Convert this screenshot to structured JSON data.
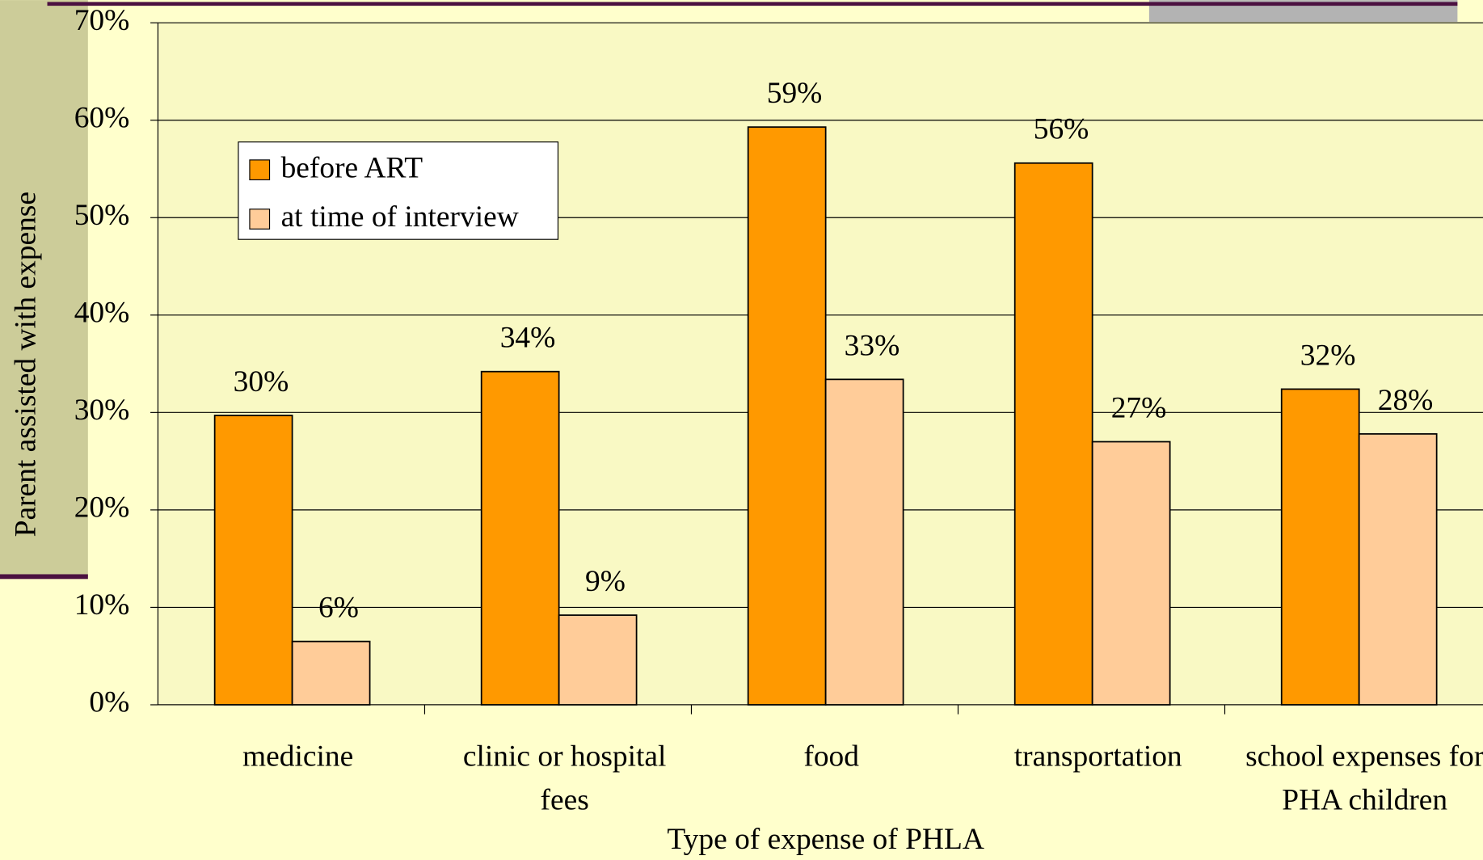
{
  "chart_data": {
    "type": "bar",
    "x_label": "Type of expense of PHLA",
    "y_label": "Parent assisted with expense",
    "categories": [
      "medicine",
      "clinic or hospital fees",
      "food",
      "transportation",
      "school expenses for PHA children"
    ],
    "series": [
      {
        "name": "before ART",
        "color": "#ff9900",
        "values": [
          29.7,
          34.2,
          59.3,
          55.6,
          32.4
        ],
        "value_labels": [
          "30%",
          "34%",
          "59%",
          "56%",
          "32%"
        ]
      },
      {
        "name": "at time of interview",
        "color": "#ffcc99",
        "values": [
          6.5,
          9.2,
          33.4,
          27.0,
          27.8
        ],
        "value_labels": [
          "6%",
          "9%",
          "33%",
          "27%",
          "28%"
        ]
      }
    ],
    "ylim": [
      0,
      70
    ],
    "yticks": [
      {
        "value": 0,
        "label": "0%"
      },
      {
        "value": 10,
        "label": "10%"
      },
      {
        "value": 20,
        "label": "20%"
      },
      {
        "value": 30,
        "label": "30%"
      },
      {
        "value": 40,
        "label": "40%"
      },
      {
        "value": 50,
        "label": "50%"
      },
      {
        "value": 60,
        "label": "60%"
      },
      {
        "value": 70,
        "label": "70%"
      }
    ],
    "grid": true,
    "legend": "upper left"
  }
}
